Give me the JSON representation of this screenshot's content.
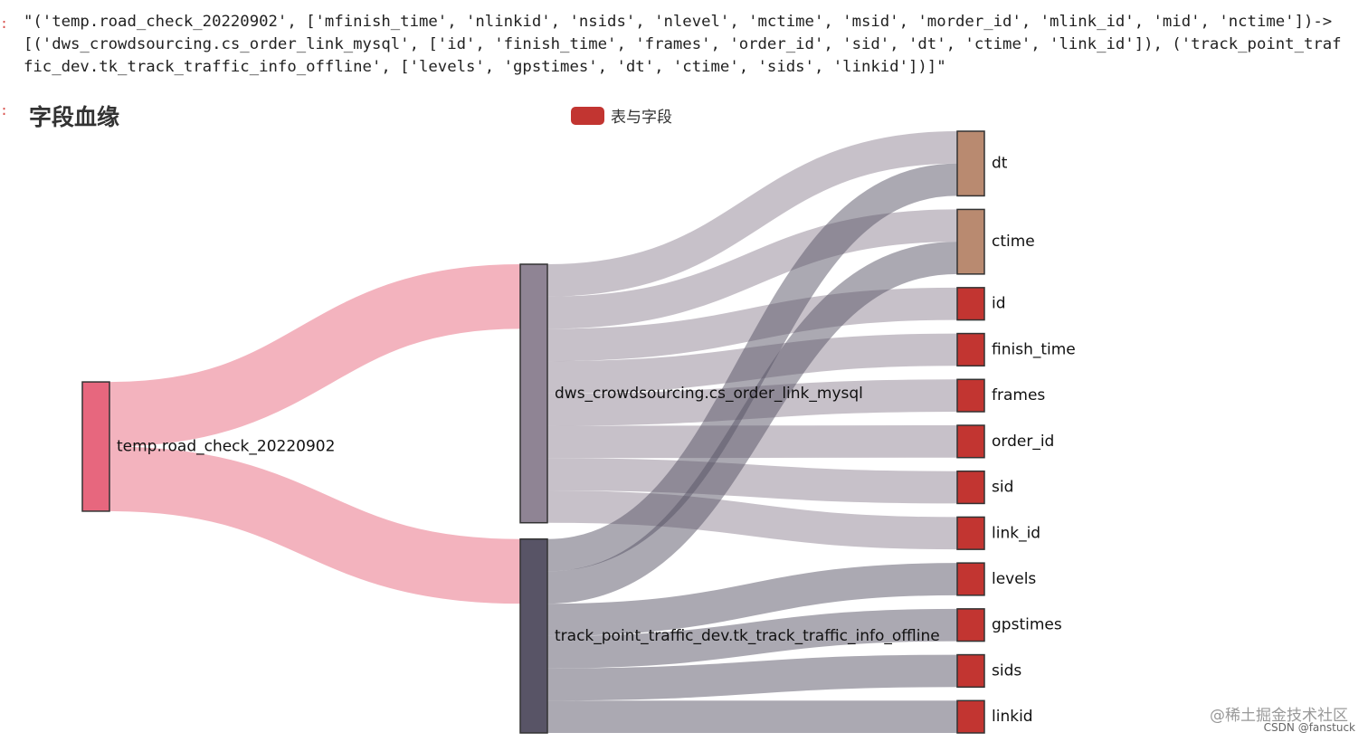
{
  "notebook": {
    "prompt_marks": [
      ":",
      ":"
    ],
    "output_lines": [
      "\"('temp.road_check_20220902', ['mfinish_time', 'nlinkid', 'nsids', 'nlevel', 'mctime', 'msid', 'morder_id', 'mlink_id', 'mid', 'nctime'])->",
      "[('dws_crowdsourcing.cs_order_link_mysql', ['id', 'finish_time', 'frames', 'order_id', 'sid', 'dt', 'ctime', 'link_id']), ('track_point_traf",
      "fic_dev.tk_track_traffic_info_offline', ['levels', 'gpstimes', 'dt', 'ctime', 'sids', 'linkid'])]\""
    ]
  },
  "chart": {
    "title": "字段血缘",
    "legend_label": "表与字段",
    "legend_color": "#c23531"
  },
  "chart_data": {
    "type": "sankey",
    "nodes": [
      {
        "name": "temp.road_check_20220902",
        "color": "#e7677e"
      },
      {
        "name": "dws_crowdsourcing.cs_order_link_mysql",
        "color": "#8f8494"
      },
      {
        "name": "track_point_traffic_dev.tk_track_traffic_info_offline",
        "color": "#585466"
      },
      {
        "name": "dt",
        "color": "#b98a70"
      },
      {
        "name": "ctime",
        "color": "#b98a70"
      },
      {
        "name": "id",
        "color": "#c23531"
      },
      {
        "name": "finish_time",
        "color": "#c23531"
      },
      {
        "name": "frames",
        "color": "#c23531"
      },
      {
        "name": "order_id",
        "color": "#c23531"
      },
      {
        "name": "sid",
        "color": "#c23531"
      },
      {
        "name": "link_id",
        "color": "#c23531"
      },
      {
        "name": "levels",
        "color": "#c23531"
      },
      {
        "name": "gpstimes",
        "color": "#c23531"
      },
      {
        "name": "sids",
        "color": "#c23531"
      },
      {
        "name": "linkid",
        "color": "#c23531"
      }
    ],
    "links": [
      {
        "source": "temp.road_check_20220902",
        "target": "dws_crowdsourcing.cs_order_link_mysql",
        "value": 2
      },
      {
        "source": "temp.road_check_20220902",
        "target": "track_point_traffic_dev.tk_track_traffic_info_offline",
        "value": 2
      },
      {
        "source": "dws_crowdsourcing.cs_order_link_mysql",
        "target": "dt",
        "value": 1
      },
      {
        "source": "dws_crowdsourcing.cs_order_link_mysql",
        "target": "ctime",
        "value": 1
      },
      {
        "source": "dws_crowdsourcing.cs_order_link_mysql",
        "target": "id",
        "value": 1
      },
      {
        "source": "dws_crowdsourcing.cs_order_link_mysql",
        "target": "finish_time",
        "value": 1
      },
      {
        "source": "dws_crowdsourcing.cs_order_link_mysql",
        "target": "frames",
        "value": 1
      },
      {
        "source": "dws_crowdsourcing.cs_order_link_mysql",
        "target": "order_id",
        "value": 1
      },
      {
        "source": "dws_crowdsourcing.cs_order_link_mysql",
        "target": "sid",
        "value": 1
      },
      {
        "source": "dws_crowdsourcing.cs_order_link_mysql",
        "target": "link_id",
        "value": 1
      },
      {
        "source": "track_point_traffic_dev.tk_track_traffic_info_offline",
        "target": "dt",
        "value": 1
      },
      {
        "source": "track_point_traffic_dev.tk_track_traffic_info_offline",
        "target": "ctime",
        "value": 1
      },
      {
        "source": "track_point_traffic_dev.tk_track_traffic_info_offline",
        "target": "levels",
        "value": 1
      },
      {
        "source": "track_point_traffic_dev.tk_track_traffic_info_offline",
        "target": "gpstimes",
        "value": 1
      },
      {
        "source": "track_point_traffic_dev.tk_track_traffic_info_offline",
        "target": "sids",
        "value": 1
      },
      {
        "source": "track_point_traffic_dev.tk_track_traffic_info_offline",
        "target": "linkid",
        "value": 1
      }
    ]
  },
  "watermark": {
    "line1": "@稀土掘金技术社区",
    "line2": "CSDN @fanstuck"
  }
}
